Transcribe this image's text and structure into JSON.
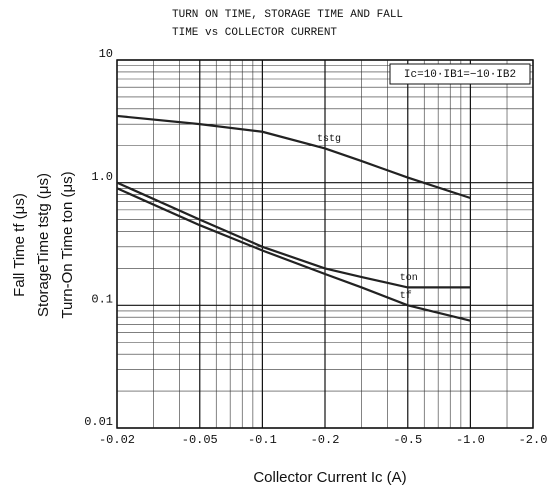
{
  "chart_data": {
    "type": "line",
    "title_lines": [
      "TURN ON TIME, STORAGE TIME AND FALL",
      "TIME vs COLLECTOR CURRENT"
    ],
    "x_label": "Collector Current  Ic  (A)",
    "y_label_lines": [
      "Fall Time  tf  (μs)",
      "StorageTime  tstg  (μs)",
      "Turn-On Time  ton  (μs)"
    ],
    "annotation": "Ic=10·IB1=−10·IB2",
    "x": [
      -0.02,
      -0.05,
      -0.1,
      -0.2,
      -0.3,
      -0.5,
      -1.0
    ],
    "series": [
      {
        "name": "tstg",
        "color": "#222222",
        "values": [
          3.5,
          3.0,
          2.6,
          1.9,
          1.5,
          1.1,
          0.75
        ]
      },
      {
        "name": "ton",
        "color": "#222222",
        "values": [
          1.0,
          0.5,
          0.3,
          0.2,
          0.17,
          0.14,
          0.14
        ]
      },
      {
        "name": "tf",
        "color": "#222222",
        "values": [
          0.9,
          0.45,
          0.28,
          0.18,
          0.14,
          0.1,
          0.075
        ]
      }
    ],
    "xscale": "log",
    "yscale": "log",
    "xlim": [
      -0.02,
      -2.0
    ],
    "ylim": [
      0.01,
      10
    ],
    "xticks": [
      -0.02,
      -0.05,
      -0.1,
      -0.2,
      -0.5,
      {
        "value": -1.0,
        "label": "-1.0"
      },
      {
        "value": -2.0,
        "label": "-2.0"
      }
    ],
    "yticks": [
      0.01,
      0.1,
      {
        "value": 1.0,
        "label": "1.0"
      },
      10
    ],
    "xminor": [
      -0.03,
      -0.04,
      -0.06,
      -0.07,
      -0.08,
      -0.09,
      -0.3,
      -0.4,
      -0.6,
      -0.7,
      -0.8,
      -0.9,
      -1.5
    ],
    "yminor": [
      0.02,
      0.03,
      0.04,
      0.05,
      0.06,
      0.07,
      0.08,
      0.09,
      0.2,
      0.3,
      0.4,
      0.5,
      0.6,
      0.7,
      0.8,
      0.9,
      2,
      3,
      4,
      5,
      6,
      7,
      8,
      9
    ],
    "grid": true
  }
}
